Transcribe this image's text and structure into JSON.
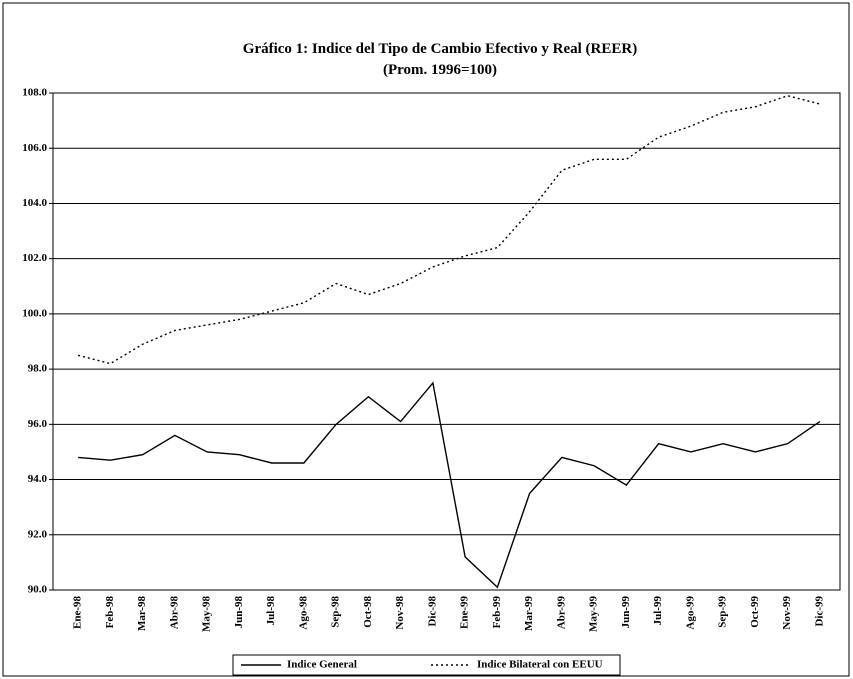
{
  "chart_data": {
    "type": "line",
    "title": "Gráfico 1: Indice del Tipo de Cambio Efectivo y Real (REER)",
    "subtitle": "(Prom. 1996=100)",
    "categories": [
      "Ene-98",
      "Feb-98",
      "Mar-98",
      "Abr-98",
      "May-98",
      "Jun-98",
      "Jul-98",
      "Ago-98",
      "Sep-98",
      "Oct-98",
      "Nov-98",
      "Dic-98",
      "Ene-99",
      "Feb-99",
      "Mar-99",
      "Abr-99",
      "May-99",
      "Jun-99",
      "Jul-99",
      "Ago-99",
      "Sep-99",
      "Oct-99",
      "Nov-99",
      "Dic-99"
    ],
    "series": [
      {
        "name": "Indice General",
        "color": "#000000",
        "style": "solid",
        "values": [
          94.8,
          94.7,
          94.9,
          95.6,
          95.0,
          94.9,
          94.6,
          94.6,
          96.0,
          97.0,
          96.1,
          97.5,
          91.2,
          90.1,
          93.5,
          94.8,
          94.5,
          93.8,
          95.3,
          95.0,
          95.3,
          95.0,
          95.3,
          96.1
        ]
      },
      {
        "name": "Indice Bilateral con EEUU",
        "color": "#000000",
        "style": "dotted",
        "values": [
          98.5,
          98.2,
          98.9,
          99.4,
          99.6,
          99.8,
          100.1,
          100.4,
          101.1,
          100.7,
          101.1,
          101.7,
          102.1,
          102.4,
          103.7,
          105.2,
          105.6,
          105.6,
          106.4,
          106.8,
          107.3,
          107.5,
          107.9,
          107.6
        ]
      }
    ],
    "ylim": [
      90,
      108
    ],
    "yticks": [
      {
        "value": 90,
        "label": "90.0"
      },
      {
        "value": 92,
        "label": "92.0"
      },
      {
        "value": 94,
        "label": "94.0"
      },
      {
        "value": 96,
        "label": "96.0"
      },
      {
        "value": 98,
        "label": "98.0"
      },
      {
        "value": 100,
        "label": "100.0"
      },
      {
        "value": 102,
        "label": "102.0"
      },
      {
        "value": 104,
        "label": "104.0"
      },
      {
        "value": 106,
        "label": "106.0"
      },
      {
        "value": 108,
        "label": "108.0"
      }
    ],
    "grid": true,
    "legend": "bottom"
  }
}
